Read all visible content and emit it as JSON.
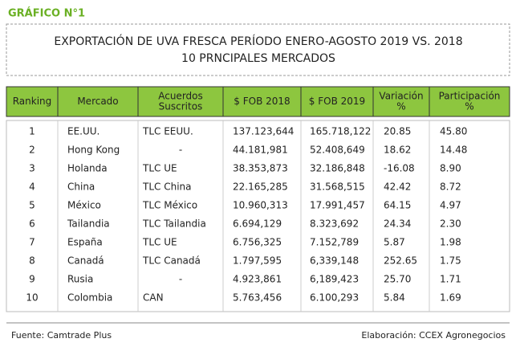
{
  "header": {
    "label": "GRÁFICO N°1"
  },
  "title": {
    "lines": [
      "EXPORTACIÓN DE UVA FRESCA PERÍODO ENERO-AGOSTO 2019 VS. 2018",
      "10 PRNCIPALES MERCADOS"
    ]
  },
  "table": {
    "columns": [
      [
        "Ranking"
      ],
      [
        "Mercado"
      ],
      [
        "Acuerdos",
        "Suscritos"
      ],
      [
        "$ FOB 2018"
      ],
      [
        "$ FOB 2019"
      ],
      [
        "Variación",
        "%"
      ],
      [
        "Participación",
        "%"
      ]
    ],
    "rows": [
      [
        "1",
        "EE.UU.",
        "TLC EEUU.",
        "137.123,644",
        "165.718,122",
        "20.85",
        "45.80"
      ],
      [
        "2",
        "Hong Kong",
        "-",
        "44.181,981",
        "52.408,649",
        "18.62",
        "14.48"
      ],
      [
        "3",
        "Holanda",
        "TLC UE",
        "38.353,873",
        "32.186,848",
        "-16.08",
        "8.90"
      ],
      [
        "4",
        "China",
        "TLC China",
        "22.165,285",
        "31.568,515",
        "42.42",
        "8.72"
      ],
      [
        "5",
        "México",
        "TLC México",
        "10.960,313",
        "17.991,457",
        "64.15",
        "4.97"
      ],
      [
        "6",
        "Tailandia",
        "TLC Tailandia",
        "6.694,129",
        "8.323,692",
        "24.34",
        "2.30"
      ],
      [
        "7",
        "España",
        "TLC UE",
        "6.756,325",
        "7.152,789",
        "5.87",
        "1.98"
      ],
      [
        "8",
        "Canadá",
        "TLC Canadá",
        "1.797,595",
        "6,339,148",
        "252.65",
        "1.75"
      ],
      [
        "9",
        "Rusia",
        "-",
        "4.923,861",
        "6,189,423",
        "25.70",
        "1.71"
      ],
      [
        "10",
        "Colombia",
        "CAN",
        "5.763,456",
        "6.100,293",
        "5.84",
        "1.69"
      ]
    ]
  },
  "footer": {
    "source": "Fuente: Camtrade Plus",
    "credit": "Elaboración: CCEX Agronegocios"
  }
}
